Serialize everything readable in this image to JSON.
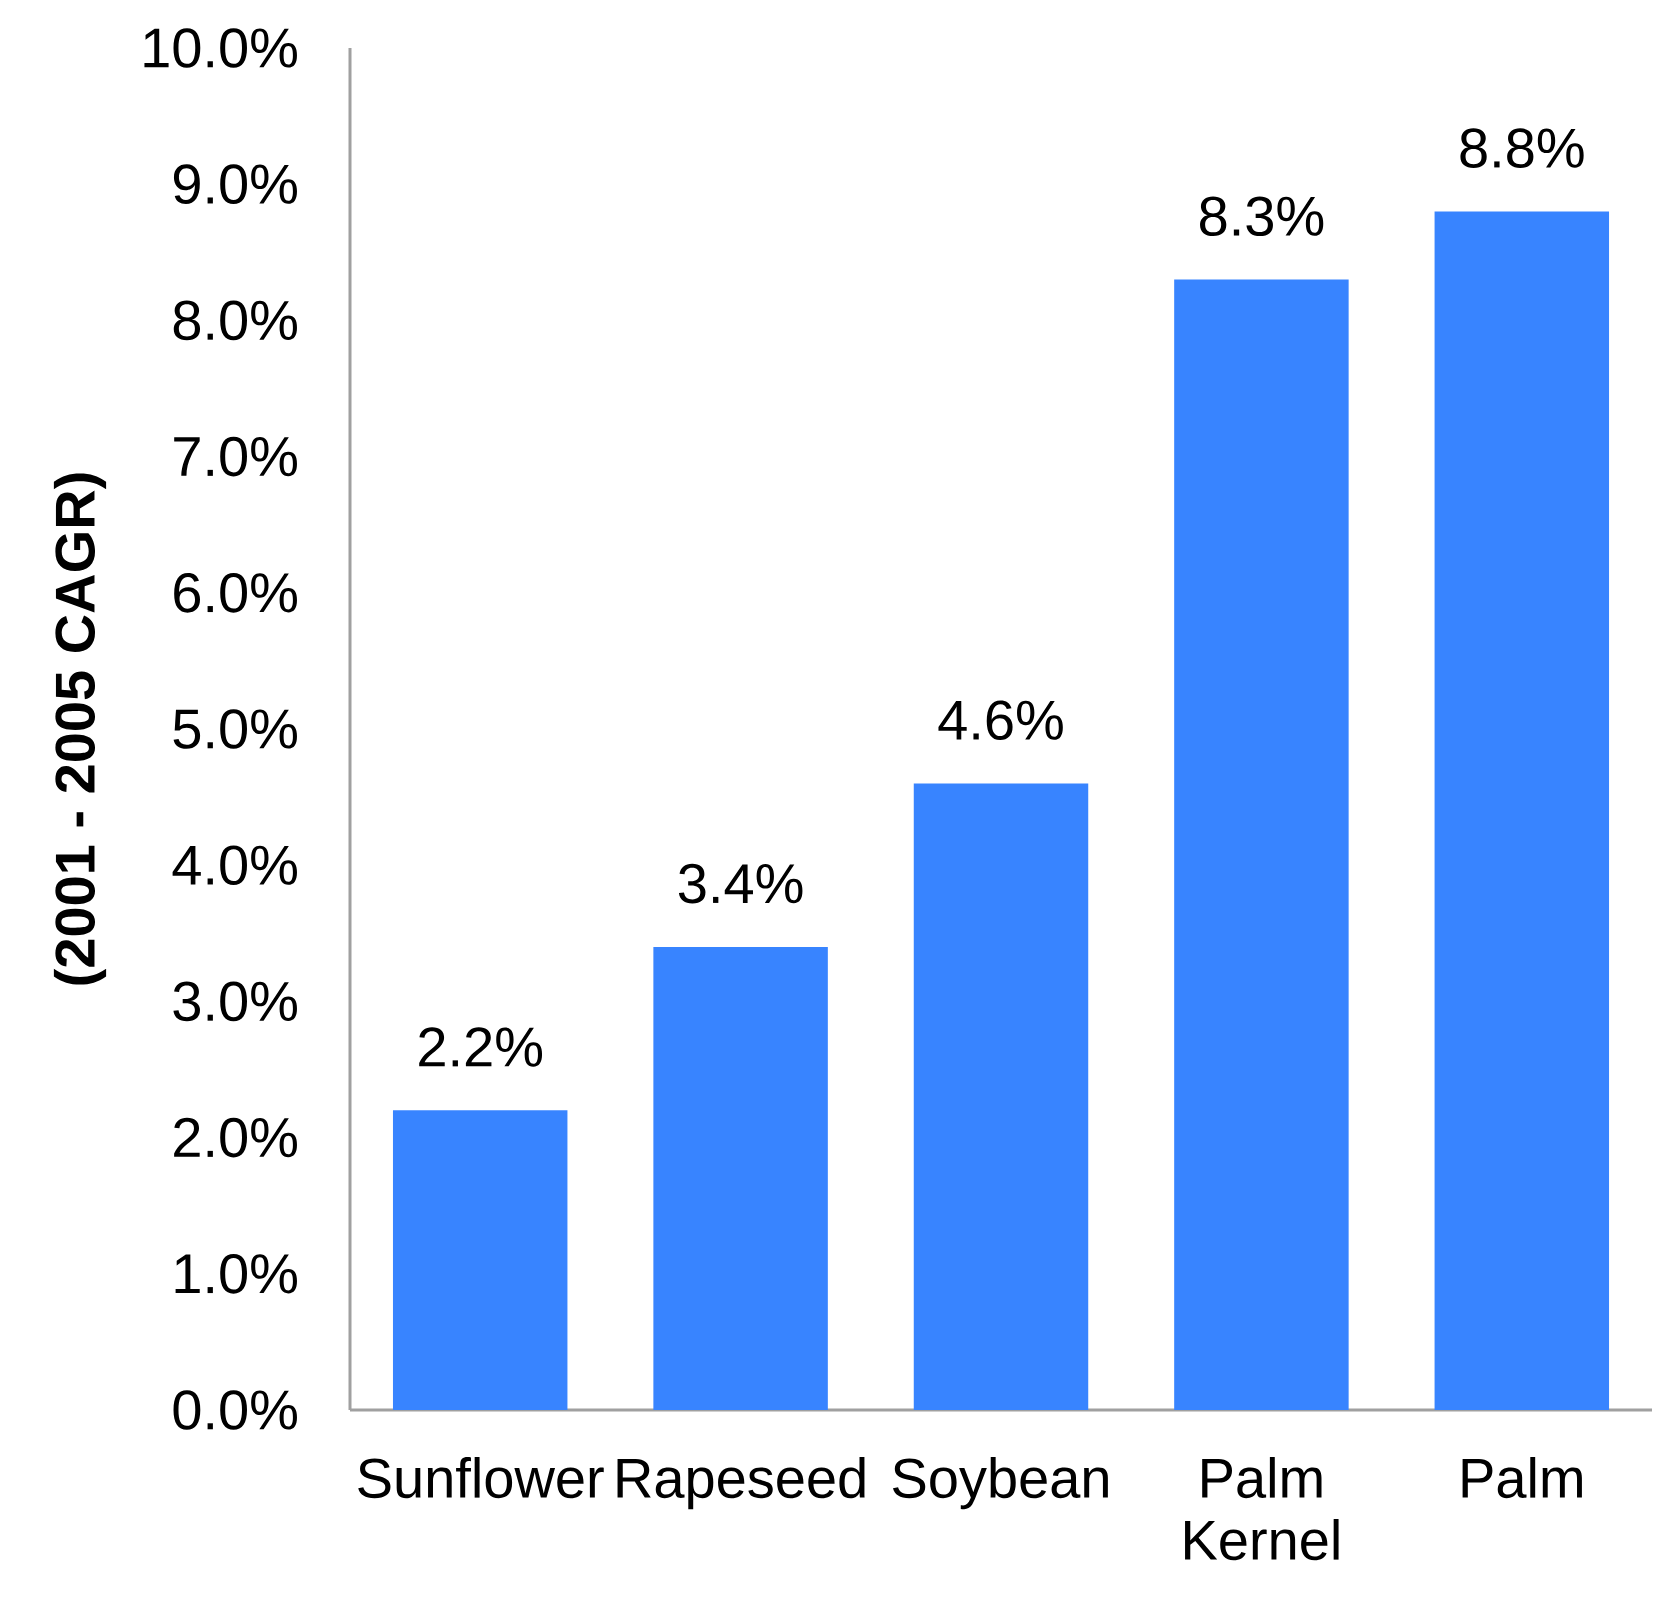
{
  "chart_data": {
    "type": "bar",
    "ylabel": "(2001 - 2005 CAGR)",
    "categories": [
      "Sunflower",
      "Rapeseed",
      "Soybean",
      "Palm Kernel",
      "Palm"
    ],
    "values": [
      2.2,
      3.4,
      4.6,
      8.3,
      8.8
    ],
    "value_labels": [
      "2.2%",
      "3.4%",
      "4.6%",
      "8.3%",
      "8.8%"
    ],
    "color": "#3884ff",
    "ylim": [
      0,
      10
    ],
    "yticks": [
      {
        "value": 0,
        "label": "0.0%"
      },
      {
        "value": 1,
        "label": "1.0%"
      },
      {
        "value": 2,
        "label": "2.0%"
      },
      {
        "value": 3,
        "label": "3.0%"
      },
      {
        "value": 4,
        "label": "4.0%"
      },
      {
        "value": 5,
        "label": "5.0%"
      },
      {
        "value": 6,
        "label": "6.0%"
      },
      {
        "value": 7,
        "label": "7.0%"
      },
      {
        "value": 8,
        "label": "8.0%"
      },
      {
        "value": 9,
        "label": "9.0%"
      },
      {
        "value": 10,
        "label": "10.0%"
      }
    ]
  }
}
